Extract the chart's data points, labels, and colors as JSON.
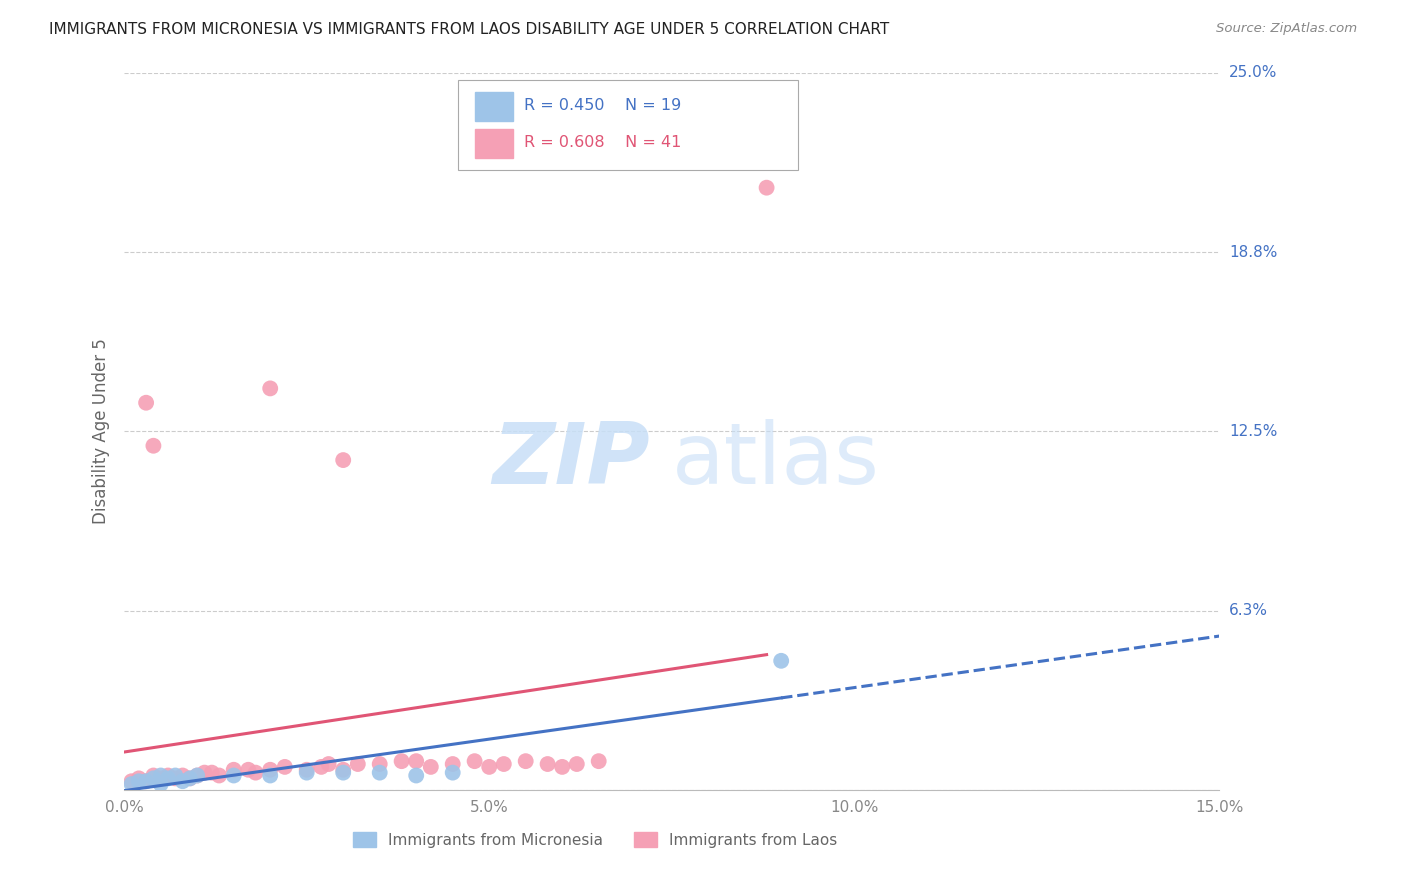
{
  "title": "IMMIGRANTS FROM MICRONESIA VS IMMIGRANTS FROM LAOS DISABILITY AGE UNDER 5 CORRELATION CHART",
  "source": "Source: ZipAtlas.com",
  "ylabel": "Disability Age Under 5",
  "legend_micronesia": "Immigrants from Micronesia",
  "legend_laos": "Immigrants from Laos",
  "R_micronesia": 0.45,
  "N_micronesia": 19,
  "R_laos": 0.608,
  "N_laos": 41,
  "xlim": [
    0.0,
    0.15
  ],
  "ylim": [
    0.0,
    0.25
  ],
  "yticks": [
    0.0,
    0.0625,
    0.125,
    0.1875,
    0.25
  ],
  "ytick_labels": [
    "",
    "6.3%",
    "12.5%",
    "18.8%",
    "25.0%"
  ],
  "xticks": [
    0.0,
    0.05,
    0.1,
    0.15
  ],
  "xtick_labels": [
    "0.0%",
    "5.0%",
    "10.0%",
    "15.0%"
  ],
  "background_color": "#ffffff",
  "grid_color": "#cccccc",
  "micronesia_scatter_color": "#9ec4e8",
  "laos_scatter_color": "#f5a0b5",
  "micronesia_line_color": "#4472c4",
  "laos_line_color": "#e05575",
  "watermark_zip_color": "#c8dff7",
  "watermark_atlas_color": "#c8dff7",
  "title_color": "#222222",
  "source_color": "#888888",
  "axis_label_color": "#666666",
  "tick_label_color": "#888888",
  "right_tick_color": "#4472c4",
  "legend_text_color_mic": "#4472c4",
  "legend_text_color_laos": "#e05575",
  "mic_x": [
    0.001,
    0.002,
    0.003,
    0.004,
    0.005,
    0.006,
    0.007,
    0.008,
    0.009,
    0.01,
    0.015,
    0.02,
    0.025,
    0.03,
    0.035,
    0.04,
    0.045,
    0.09,
    0.005
  ],
  "mic_y": [
    0.002,
    0.003,
    0.003,
    0.004,
    0.005,
    0.004,
    0.005,
    0.003,
    0.004,
    0.005,
    0.005,
    0.005,
    0.006,
    0.006,
    0.006,
    0.005,
    0.006,
    0.045,
    0.002
  ],
  "laos_x": [
    0.001,
    0.002,
    0.003,
    0.004,
    0.005,
    0.006,
    0.007,
    0.008,
    0.009,
    0.01,
    0.011,
    0.012,
    0.013,
    0.015,
    0.017,
    0.018,
    0.02,
    0.022,
    0.025,
    0.027,
    0.028,
    0.03,
    0.032,
    0.035,
    0.038,
    0.04,
    0.042,
    0.045,
    0.048,
    0.05,
    0.052,
    0.055,
    0.058,
    0.06,
    0.062,
    0.065,
    0.02,
    0.03,
    0.088,
    0.003,
    0.004
  ],
  "laos_y": [
    0.003,
    0.004,
    0.003,
    0.005,
    0.004,
    0.005,
    0.004,
    0.005,
    0.004,
    0.005,
    0.006,
    0.006,
    0.005,
    0.007,
    0.007,
    0.006,
    0.007,
    0.008,
    0.007,
    0.008,
    0.009,
    0.007,
    0.009,
    0.009,
    0.01,
    0.01,
    0.008,
    0.009,
    0.01,
    0.008,
    0.009,
    0.01,
    0.009,
    0.008,
    0.009,
    0.01,
    0.14,
    0.115,
    0.21,
    0.135,
    0.12
  ]
}
